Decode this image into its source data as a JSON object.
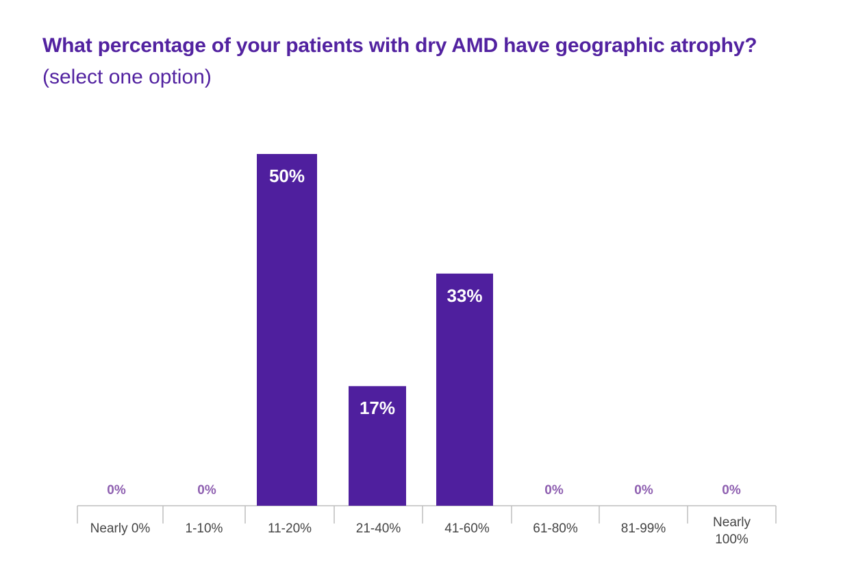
{
  "chart_data": {
    "type": "bar",
    "title": "What percentage of your patients with dry AMD have geographic atrophy?",
    "subtitle": "(select one option)",
    "categories": [
      [
        "Nearly 0%"
      ],
      [
        "1-10%"
      ],
      [
        "11-20%"
      ],
      [
        "21-40%"
      ],
      [
        "41-60%"
      ],
      [
        "61-80%"
      ],
      [
        "81-99%"
      ],
      [
        "Nearly",
        "100%"
      ]
    ],
    "values": [
      0,
      0,
      50,
      17,
      33,
      0,
      0,
      0
    ],
    "data_labels": [
      "0%",
      "0%",
      "50%",
      "17%",
      "33%",
      "0%",
      "0%",
      "0%"
    ],
    "xlabel": "",
    "ylabel": "",
    "ylim": [
      0,
      50
    ],
    "grid": false,
    "colors": {
      "bar": "#4f1f9e",
      "title": "#5222a0",
      "zero_label": "#8e5fb0",
      "category_label": "#444444",
      "axis": "#bdbdbd"
    }
  }
}
